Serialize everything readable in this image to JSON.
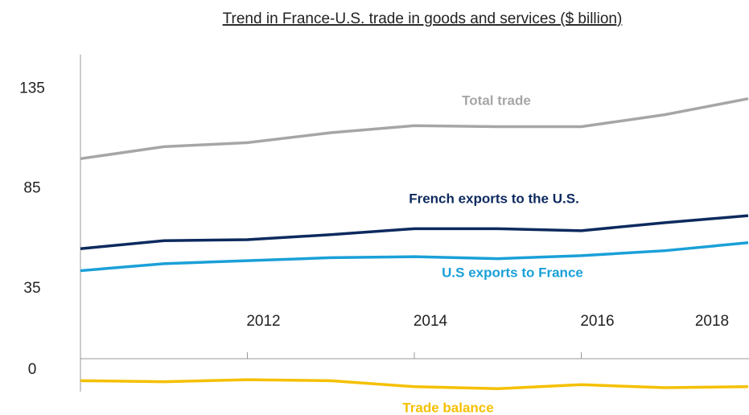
{
  "chart_data": {
    "type": "line",
    "title": "Trend in France-U.S. trade in goods and services ($ billion)",
    "categories": [
      null,
      null,
      "2012",
      null,
      "2014",
      null,
      "2016",
      null,
      "2018"
    ],
    "series": [
      {
        "name": "Total trade",
        "color": "#a6a6a6",
        "values": [
          100,
          106,
          108,
          113,
          116.5,
          116,
          116,
          122,
          130
        ]
      },
      {
        "name": "French exports to the U.S.",
        "color": "#0d2a5e",
        "values": [
          55,
          59,
          59.5,
          62,
          65,
          65,
          64,
          68,
          71.5
        ]
      },
      {
        "name": "U.S exports to France",
        "color": "#1aa0d8",
        "values": [
          44,
          47.5,
          49,
          50.5,
          51,
          50,
          51.5,
          54,
          58
        ]
      },
      {
        "name": "Trade balance",
        "color": "#f5c000",
        "values": [
          -11,
          -11.5,
          -10.5,
          -11,
          -14,
          -15,
          -13,
          -14.5,
          -14
        ]
      }
    ],
    "ylim": [
      -16.5,
      152
    ],
    "yticks": [
      0,
      35,
      85,
      135
    ],
    "grid": false
  }
}
